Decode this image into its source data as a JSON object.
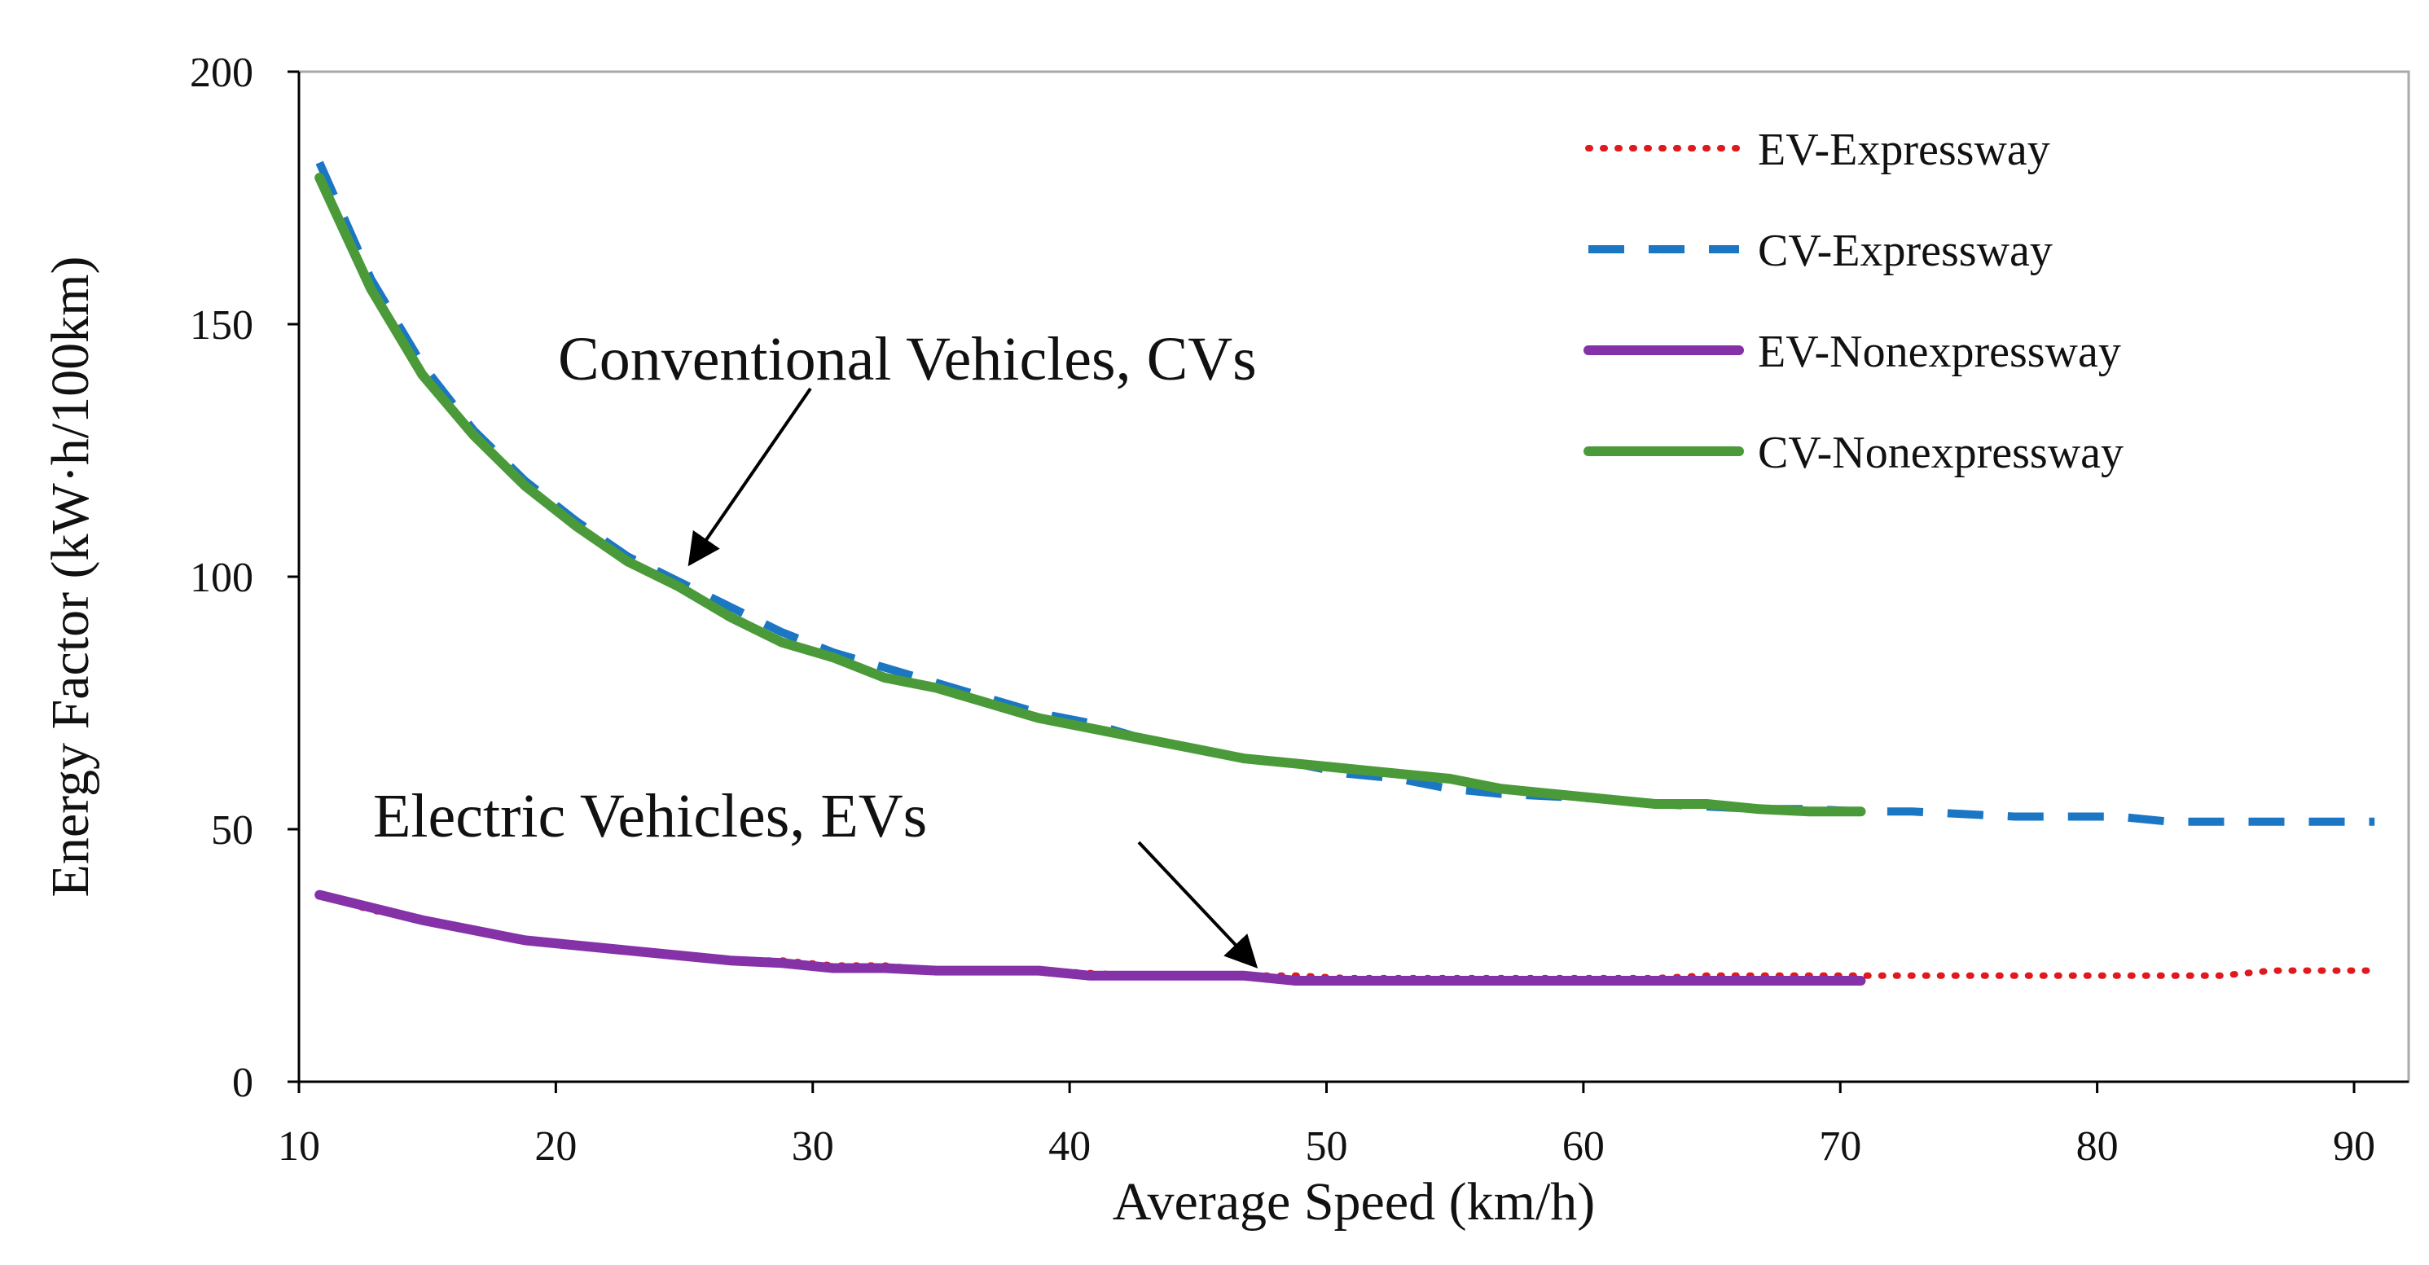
{
  "chart_data": {
    "type": "line",
    "title": "",
    "xlabel": "Average Speed (km/h)",
    "ylabel": "Energy Factor (kW·h/100km)",
    "xlim": [
      10,
      90
    ],
    "ylim": [
      0,
      200
    ],
    "x_ticks": [
      "10",
      "20",
      "30",
      "40",
      "50",
      "60",
      "70",
      "80",
      "90"
    ],
    "y_ticks": [
      "0",
      "50",
      "100",
      "150",
      "200"
    ],
    "grid": false,
    "legend_position": "top-right",
    "series": [
      {
        "name": "EV-Expressway",
        "color": "#e0191f",
        "style": "dotted",
        "points": [
          [
            10.8,
            37
          ],
          [
            12.8,
            34
          ],
          [
            14.8,
            32
          ],
          [
            16.8,
            30
          ],
          [
            18.8,
            28
          ],
          [
            20.8,
            27
          ],
          [
            22.8,
            26
          ],
          [
            24.8,
            25
          ],
          [
            26.8,
            24
          ],
          [
            28.8,
            24
          ],
          [
            30.8,
            23
          ],
          [
            32.8,
            23
          ],
          [
            34.8,
            22
          ],
          [
            36.8,
            22
          ],
          [
            38.8,
            22
          ],
          [
            40.8,
            21.5
          ],
          [
            42.8,
            21
          ],
          [
            44.8,
            21
          ],
          [
            46.8,
            21
          ],
          [
            48.8,
            21
          ],
          [
            50.8,
            20.5
          ],
          [
            52.8,
            20.5
          ],
          [
            54.8,
            20.5
          ],
          [
            56.8,
            20.5
          ],
          [
            58.8,
            20.5
          ],
          [
            60.8,
            20.5
          ],
          [
            62.8,
            20.5
          ],
          [
            64.8,
            21
          ],
          [
            66.8,
            21
          ],
          [
            68.8,
            21
          ],
          [
            70.8,
            21
          ],
          [
            72.8,
            21
          ],
          [
            74.8,
            21
          ],
          [
            76.8,
            21
          ],
          [
            78.8,
            21
          ],
          [
            80.8,
            21
          ],
          [
            82.8,
            21
          ],
          [
            84.8,
            21
          ],
          [
            86.8,
            22
          ],
          [
            88.8,
            22
          ],
          [
            90.8,
            22
          ]
        ]
      },
      {
        "name": "CV-Expressway",
        "color": "#1b76c4",
        "style": "dashed",
        "points": [
          [
            10.8,
            182
          ],
          [
            12.8,
            159
          ],
          [
            14.8,
            142
          ],
          [
            16.8,
            129
          ],
          [
            18.8,
            119
          ],
          [
            20.8,
            111
          ],
          [
            22.8,
            104
          ],
          [
            24.8,
            99
          ],
          [
            26.8,
            94
          ],
          [
            28.8,
            89
          ],
          [
            30.8,
            85
          ],
          [
            32.8,
            82
          ],
          [
            34.8,
            79
          ],
          [
            36.8,
            76
          ],
          [
            38.8,
            73
          ],
          [
            40.8,
            71
          ],
          [
            42.8,
            68
          ],
          [
            44.8,
            66
          ],
          [
            46.8,
            64
          ],
          [
            48.8,
            63
          ],
          [
            50.8,
            61
          ],
          [
            52.8,
            60
          ],
          [
            54.8,
            58
          ],
          [
            56.8,
            57
          ],
          [
            58.8,
            56.5
          ],
          [
            60.8,
            56
          ],
          [
            62.8,
            55
          ],
          [
            64.8,
            54.5
          ],
          [
            66.8,
            54
          ],
          [
            68.8,
            54
          ],
          [
            70.8,
            53.5
          ],
          [
            72.8,
            53.5
          ],
          [
            74.8,
            53
          ],
          [
            76.8,
            52.5
          ],
          [
            78.8,
            52.5
          ],
          [
            80.8,
            52.5
          ],
          [
            82.8,
            51.5
          ],
          [
            84.8,
            51.5
          ],
          [
            86.8,
            51.5
          ],
          [
            88.8,
            51.5
          ],
          [
            90.8,
            51.5
          ]
        ]
      },
      {
        "name": "EV-Nonexpressway",
        "color": "#8531a8",
        "style": "solid",
        "points": [
          [
            10.8,
            37
          ],
          [
            12.8,
            34.5
          ],
          [
            14.8,
            32
          ],
          [
            16.8,
            30
          ],
          [
            18.8,
            28
          ],
          [
            20.8,
            27
          ],
          [
            22.8,
            26
          ],
          [
            24.8,
            25
          ],
          [
            26.8,
            24
          ],
          [
            28.8,
            23.5
          ],
          [
            30.8,
            22.5
          ],
          [
            32.8,
            22.5
          ],
          [
            34.8,
            22
          ],
          [
            36.8,
            22
          ],
          [
            38.8,
            22
          ],
          [
            40.8,
            21
          ],
          [
            42.8,
            21
          ],
          [
            44.8,
            21
          ],
          [
            46.8,
            21
          ],
          [
            48.8,
            20
          ],
          [
            50.8,
            20
          ],
          [
            52.8,
            20
          ],
          [
            54.8,
            20
          ],
          [
            56.8,
            20
          ],
          [
            58.8,
            20
          ],
          [
            60.8,
            20
          ],
          [
            62.8,
            20
          ],
          [
            64.8,
            20
          ],
          [
            66.8,
            20
          ],
          [
            68.8,
            20
          ],
          [
            70.8,
            20
          ]
        ]
      },
      {
        "name": "CV-Nonexpressway",
        "color": "#4b9a3a",
        "style": "solid",
        "points": [
          [
            10.8,
            179
          ],
          [
            12.8,
            157
          ],
          [
            14.8,
            140
          ],
          [
            16.8,
            128
          ],
          [
            18.8,
            118
          ],
          [
            20.8,
            110
          ],
          [
            22.8,
            103
          ],
          [
            24.8,
            98
          ],
          [
            26.8,
            92
          ],
          [
            28.8,
            87
          ],
          [
            30.8,
            84
          ],
          [
            32.8,
            80
          ],
          [
            34.8,
            78
          ],
          [
            36.8,
            75
          ],
          [
            38.8,
            72
          ],
          [
            40.8,
            70
          ],
          [
            42.8,
            68
          ],
          [
            44.8,
            66
          ],
          [
            46.8,
            64
          ],
          [
            48.8,
            63
          ],
          [
            50.8,
            62
          ],
          [
            52.8,
            61
          ],
          [
            54.8,
            60
          ],
          [
            56.8,
            58
          ],
          [
            58.8,
            57
          ],
          [
            60.8,
            56
          ],
          [
            62.8,
            55
          ],
          [
            64.8,
            55
          ],
          [
            66.8,
            54
          ],
          [
            68.8,
            53.5
          ],
          [
            70.8,
            53.5
          ]
        ]
      }
    ],
    "annotations": [
      {
        "text": "Conventional Vehicles, CVs",
        "target": [
          25,
          101
        ]
      },
      {
        "text": "Electric Vehicles, EVs",
        "target": [
          47.5,
          21.5
        ]
      }
    ]
  }
}
